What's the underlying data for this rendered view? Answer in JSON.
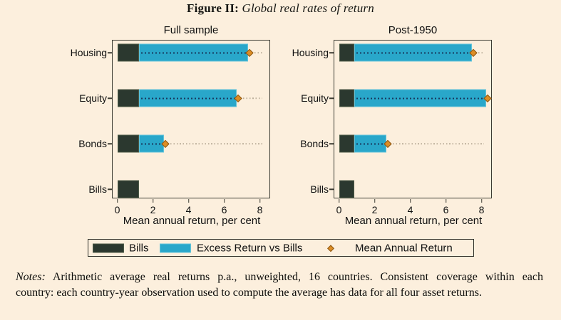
{
  "figure": {
    "title_prefix": "Figure II:",
    "title_rest": " Global real rates of return"
  },
  "colors": {
    "background": "#fcefdd",
    "bills_bar": "#2b382f",
    "excess_bar": "#29a7ca",
    "diamond_marker": "#dd8d25",
    "navy_dotted_line": "#17395f",
    "light_dotted_line": "#bdb09c",
    "axis_border": "#3c3c33"
  },
  "legend": {
    "bills_label": "Bills",
    "excess_label": "Excess Return vs Bills",
    "mean_label": "Mean Annual Return"
  },
  "notes": {
    "prefix": "Notes:",
    "line1_rest": " Arithmetic average real returns p.a., unweighted, 16 countries.  Consistent coverage within each",
    "line2": "country: each country-year observation used to compute the average has data for all four asset returns."
  },
  "chart_data": [
    {
      "type": "bar",
      "orientation": "horizontal",
      "title": "Full sample",
      "categories": [
        "Housing",
        "Equity",
        "Bonds",
        "Bills"
      ],
      "series": [
        {
          "name": "Bills",
          "values": [
            1.2,
            1.2,
            1.2,
            1.2
          ]
        },
        {
          "name": "Excess Return vs Bills",
          "values": [
            6.15,
            5.5,
            1.4,
            0
          ]
        }
      ],
      "markers": {
        "name": "Mean Annual Return",
        "values": [
          7.35,
          6.7,
          2.6,
          null
        ]
      },
      "xlabel": "Mean annual return, per cent",
      "xlim": [
        0,
        8.6
      ],
      "xticks": [
        0,
        2,
        4,
        6,
        8
      ],
      "grid": false,
      "legend_position": "bottom"
    },
    {
      "type": "bar",
      "orientation": "horizontal",
      "title": "Post-1950",
      "categories": [
        "Housing",
        "Equity",
        "Bonds",
        "Bills"
      ],
      "series": [
        {
          "name": "Bills",
          "values": [
            0.85,
            0.85,
            0.85,
            0.85
          ]
        },
        {
          "name": "Excess Return vs Bills",
          "values": [
            6.6,
            7.4,
            1.8,
            0
          ]
        }
      ],
      "markers": {
        "name": "Mean Annual Return",
        "values": [
          7.45,
          8.25,
          2.65,
          null
        ]
      },
      "xlabel": "Mean annual return, per cent",
      "xlim": [
        0,
        8.6
      ],
      "xticks": [
        0,
        2,
        4,
        6,
        8
      ],
      "grid": false,
      "legend_position": "bottom"
    }
  ]
}
